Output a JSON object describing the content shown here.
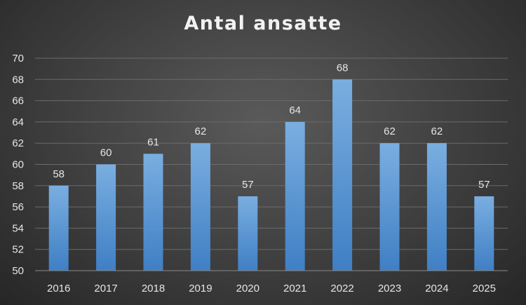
{
  "chart_data": {
    "type": "bar",
    "title": "Antal ansatte",
    "xlabel": "",
    "ylabel": "",
    "categories": [
      "2016",
      "2017",
      "2018",
      "2019",
      "2020",
      "2021",
      "2022",
      "2023",
      "2024",
      "2025"
    ],
    "values": [
      58,
      60,
      61,
      62,
      57,
      64,
      68,
      62,
      62,
      57
    ],
    "ylim": [
      50,
      70
    ],
    "yticks": [
      50,
      52,
      54,
      56,
      58,
      60,
      62,
      64,
      66,
      68,
      70
    ],
    "grid": true,
    "legend": "none",
    "data_labels": true,
    "colors": {
      "bar_top": "#7aaee0",
      "bar_bottom": "#3f7fc4",
      "background": "#404040",
      "text": "#e6e6e6"
    }
  }
}
